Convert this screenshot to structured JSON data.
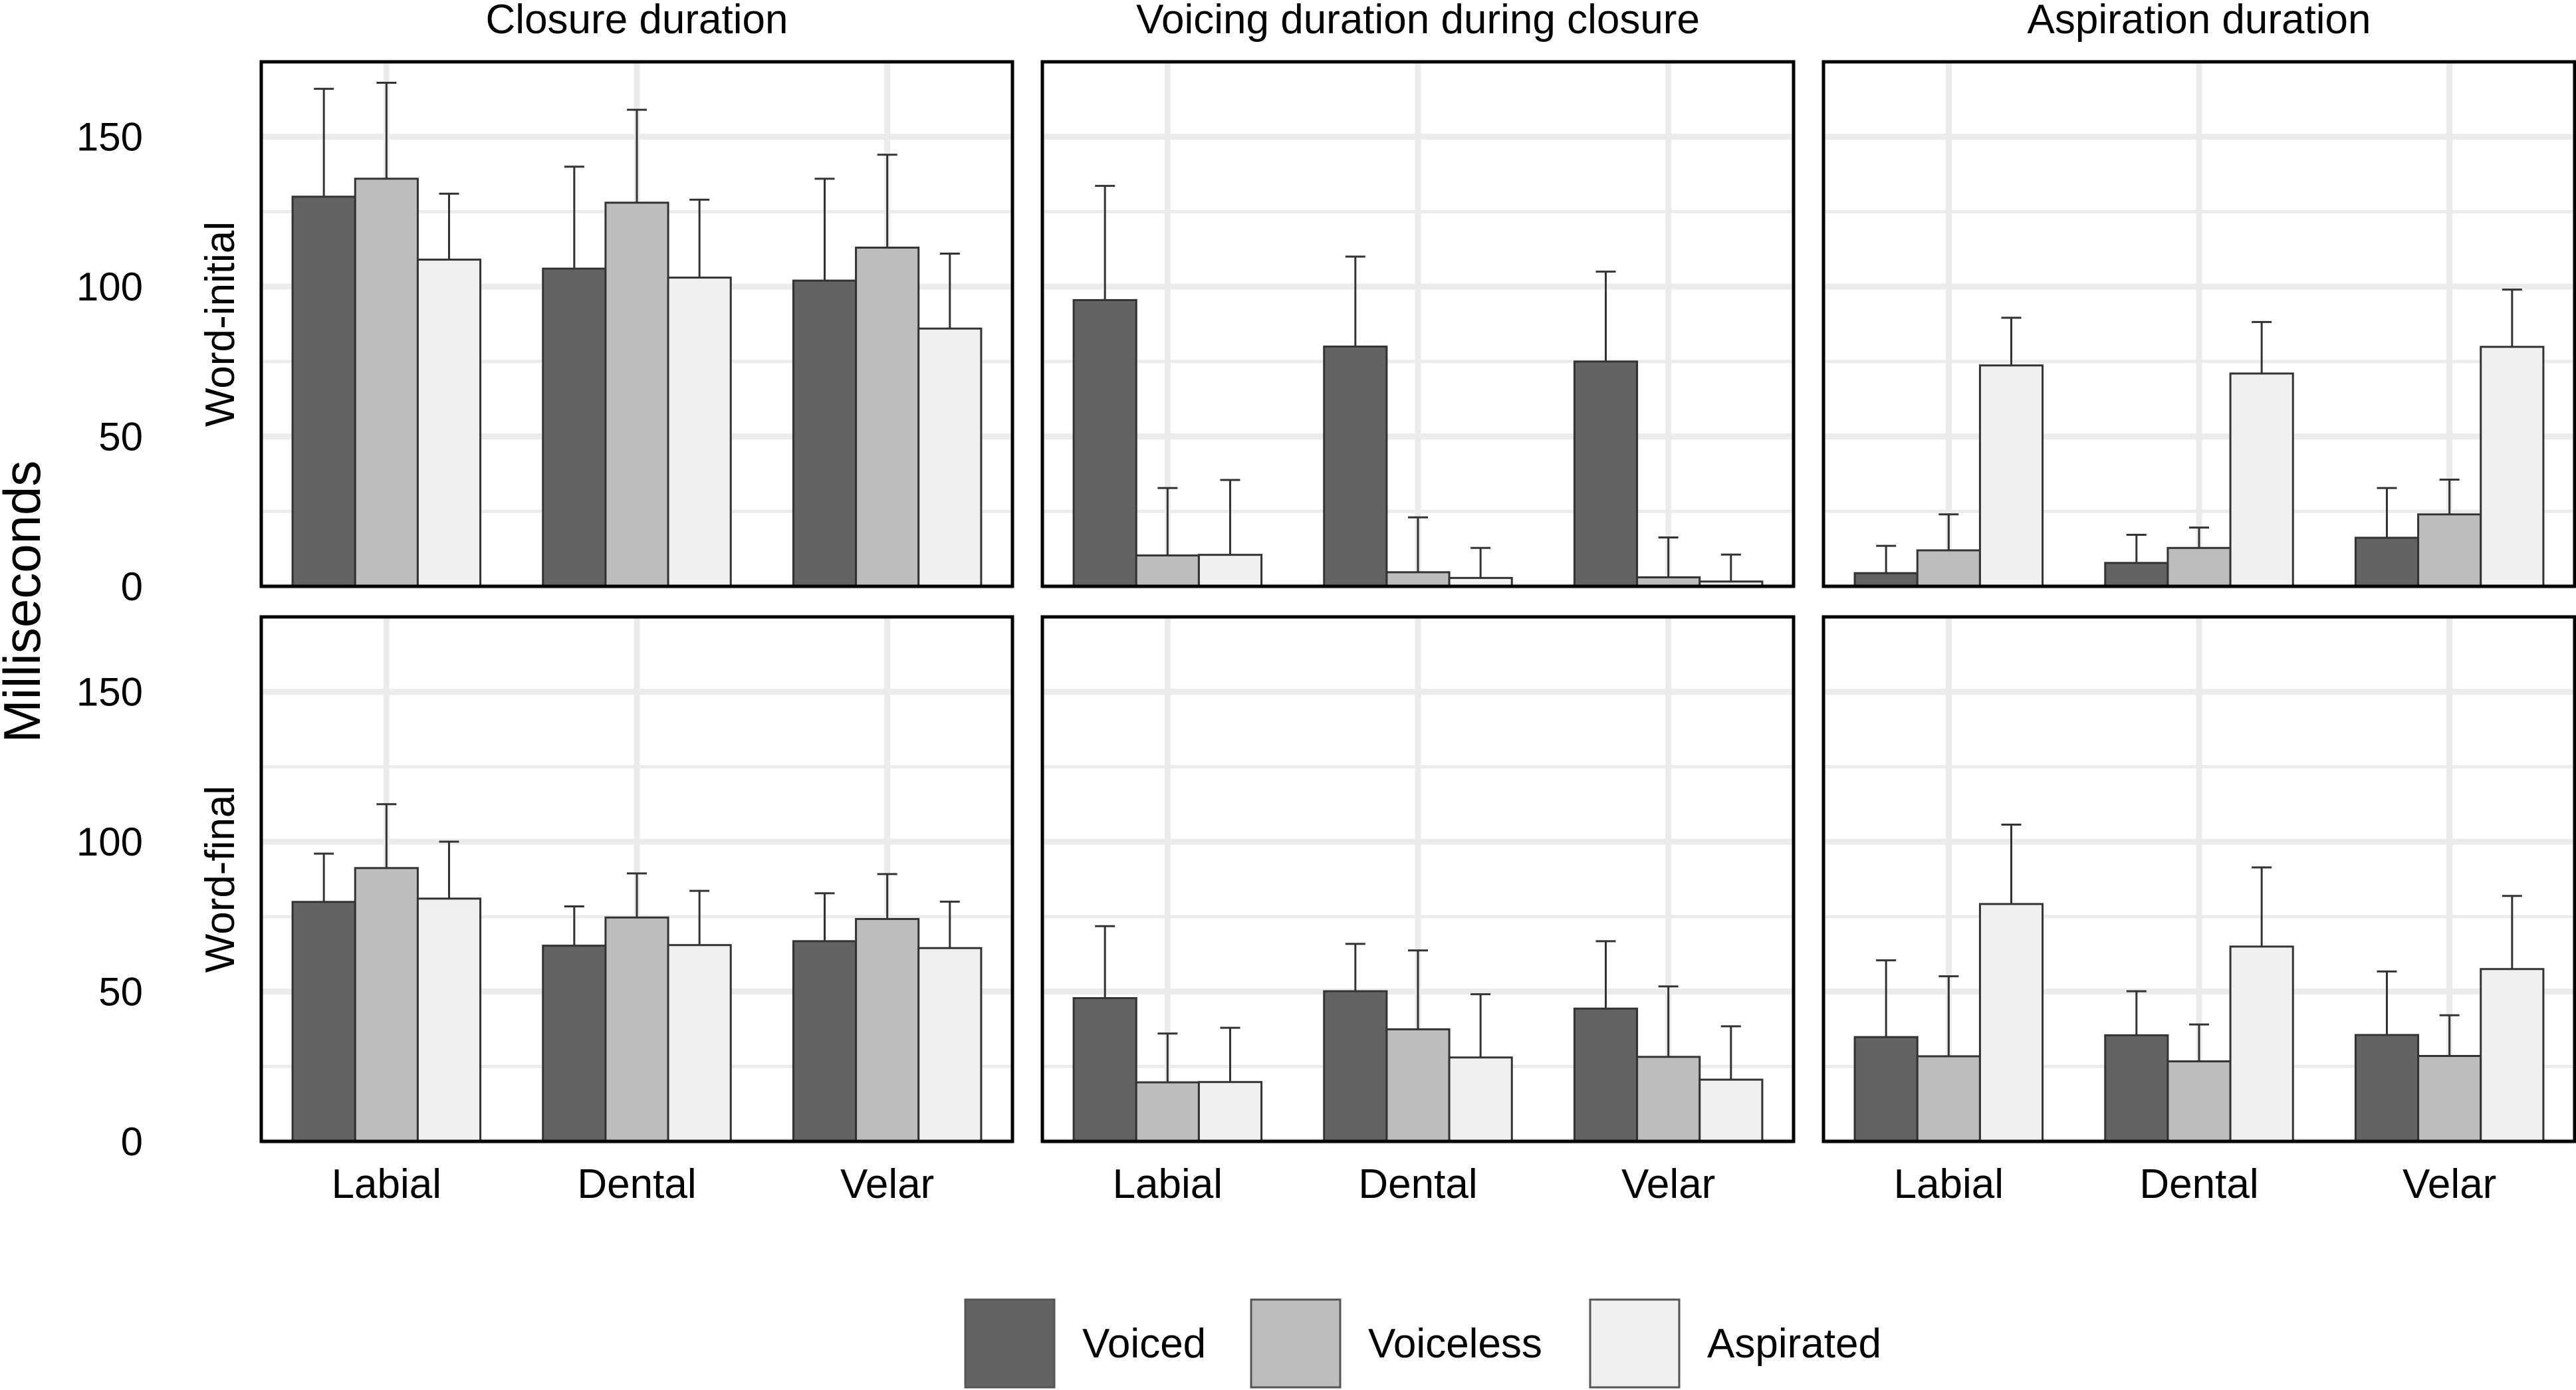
{
  "chart_data": {
    "type": "bar",
    "subtype": "faceted-grouped-bar-with-error-bars",
    "ylabel": "Milliseconds",
    "xlabel": "",
    "ylim": [
      0,
      175
    ],
    "yticks": [
      0,
      50,
      100,
      150
    ],
    "grid": true,
    "legend": {
      "placement": "bottom",
      "entries": [
        "Voiced",
        "Voiceless",
        "Aspirated"
      ]
    },
    "series_colors": {
      "Voiced": "#636363",
      "Voiceless": "#bdbdbd",
      "Aspirated": "#f0f0f0"
    },
    "columns": [
      "Closure duration",
      "Voicing duration during closure",
      "Aspiration duration"
    ],
    "rows": [
      "Word-initial",
      "Word-final"
    ],
    "categories": [
      "Labial",
      "Dental",
      "Velar"
    ],
    "series": [
      "Voiced",
      "Voiceless",
      "Aspirated"
    ],
    "panels": [
      {
        "row": "Word-initial",
        "column": "Closure duration",
        "values": {
          "Voiced": [
            130,
            106,
            102
          ],
          "Voiceless": [
            136,
            128,
            113
          ],
          "Aspirated": [
            109,
            103,
            86
          ]
        },
        "error_upper": {
          "Voiced": [
            166,
            140,
            136
          ],
          "Voiceless": [
            168,
            159,
            144
          ],
          "Aspirated": [
            131,
            129,
            111
          ]
        }
      },
      {
        "row": "Word-initial",
        "column": "Voicing duration during closure",
        "values": {
          "Voiced": [
            95.5,
            80,
            75
          ],
          "Voiceless": [
            10.3,
            4.7,
            3
          ],
          "Aspirated": [
            10.5,
            2.8,
            1.6
          ]
        },
        "error_upper": {
          "Voiced": [
            133.6,
            110,
            105
          ],
          "Voiceless": [
            32.8,
            23,
            16.3
          ],
          "Aspirated": [
            35.5,
            12.8,
            10.6
          ]
        }
      },
      {
        "row": "Word-initial",
        "column": "Aspiration duration",
        "values": {
          "Voiced": [
            4.4,
            7.8,
            16.2
          ],
          "Voiceless": [
            12,
            12.8,
            24
          ],
          "Aspirated": [
            73.7,
            71,
            79.9
          ]
        },
        "error_upper": {
          "Voiced": [
            13.5,
            17.2,
            32.8
          ],
          "Voiceless": [
            24,
            19.6,
            35.6
          ],
          "Aspirated": [
            89.6,
            88.2,
            99
          ]
        }
      },
      {
        "row": "Word-final",
        "column": "Closure duration",
        "values": {
          "Voiced": [
            79.9,
            65.3,
            66.8
          ],
          "Voiceless": [
            91.2,
            74.7,
            74.2
          ],
          "Aspirated": [
            81,
            65.5,
            64.5
          ]
        },
        "error_upper": {
          "Voiced": [
            96,
            78.4,
            82.8
          ],
          "Voiceless": [
            112.5,
            89.4,
            89.2
          ],
          "Aspirated": [
            100,
            83.6,
            80
          ]
        }
      },
      {
        "row": "Word-final",
        "column": "Voicing duration during closure",
        "values": {
          "Voiced": [
            47.8,
            50.1,
            44.3
          ],
          "Voiceless": [
            19.7,
            37.4,
            28.2
          ],
          "Aspirated": [
            19.8,
            28,
            20.6
          ]
        },
        "error_upper": {
          "Voiced": [
            71.8,
            65.9,
            66.8
          ],
          "Voiceless": [
            36,
            63.7,
            51.7
          ],
          "Aspirated": [
            37.9,
            49.1,
            38.4
          ]
        }
      },
      {
        "row": "Word-final",
        "column": "Aspiration duration",
        "values": {
          "Voiced": [
            34.8,
            35.4,
            35.5
          ],
          "Voiceless": [
            28.4,
            26.7,
            28.5
          ],
          "Aspirated": [
            79.2,
            65,
            57.5
          ]
        },
        "error_upper": {
          "Voiced": [
            60.4,
            50.1,
            56.7
          ],
          "Voiceless": [
            55.1,
            39,
            42.1
          ],
          "Aspirated": [
            105.7,
            91.4,
            81.9
          ]
        }
      }
    ]
  }
}
